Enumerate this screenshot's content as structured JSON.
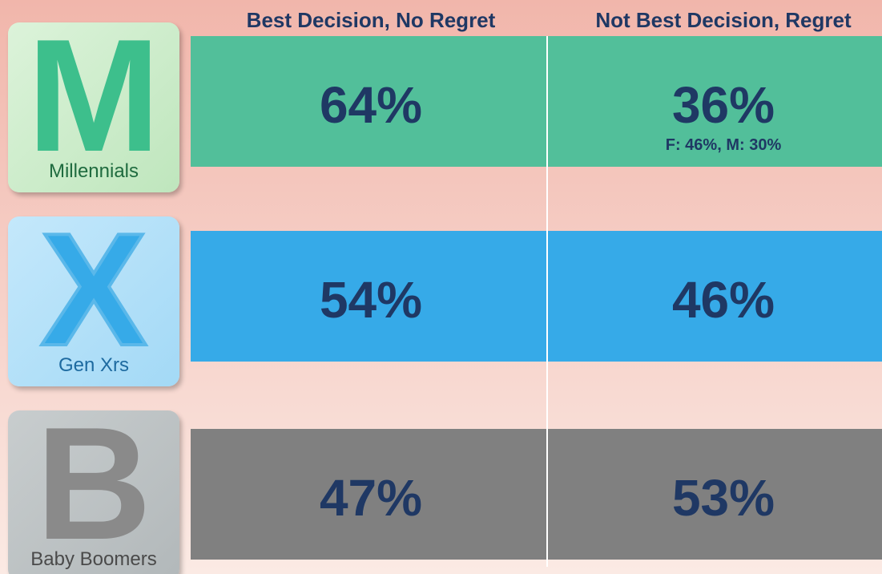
{
  "table": {
    "headers": [
      "Best Decision, No Regret",
      "Not Best Decision, Regret"
    ],
    "rows": [
      {
        "icon": "M",
        "label": "Millennials",
        "cells": [
          "64%",
          "36%"
        ],
        "note": "F: 46%, M: 30%"
      },
      {
        "icon": "X",
        "label": "Gen Xrs",
        "cells": [
          "54%",
          "46%"
        ]
      },
      {
        "icon": "B",
        "label": "Baby Boomers",
        "cells": [
          "47%",
          "53%"
        ]
      }
    ]
  }
}
